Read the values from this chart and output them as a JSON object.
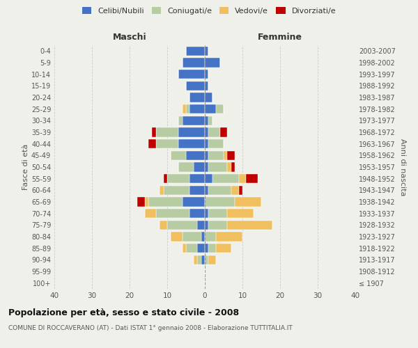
{
  "age_groups": [
    "100+",
    "95-99",
    "90-94",
    "85-89",
    "80-84",
    "75-79",
    "70-74",
    "65-69",
    "60-64",
    "55-59",
    "50-54",
    "45-49",
    "40-44",
    "35-39",
    "30-34",
    "25-29",
    "20-24",
    "15-19",
    "10-14",
    "5-9",
    "0-4"
  ],
  "birth_years": [
    "≤ 1907",
    "1908-1912",
    "1913-1917",
    "1918-1922",
    "1923-1927",
    "1928-1932",
    "1933-1937",
    "1938-1942",
    "1943-1947",
    "1948-1952",
    "1953-1957",
    "1958-1962",
    "1963-1967",
    "1968-1972",
    "1973-1977",
    "1978-1982",
    "1983-1987",
    "1988-1992",
    "1993-1997",
    "1998-2002",
    "2003-2007"
  ],
  "maschi": {
    "celibi": [
      0,
      0,
      1,
      2,
      1,
      2,
      4,
      6,
      4,
      4,
      3,
      5,
      7,
      7,
      6,
      4,
      4,
      5,
      7,
      6,
      5
    ],
    "coniugati": [
      0,
      0,
      1,
      3,
      5,
      8,
      9,
      9,
      7,
      6,
      4,
      4,
      6,
      6,
      1,
      1,
      0,
      0,
      0,
      0,
      0
    ],
    "vedovi": [
      0,
      0,
      1,
      1,
      3,
      2,
      3,
      1,
      1,
      0,
      0,
      0,
      0,
      0,
      0,
      1,
      0,
      0,
      0,
      0,
      0
    ],
    "divorziati": [
      0,
      0,
      0,
      0,
      0,
      0,
      0,
      2,
      0,
      1,
      0,
      0,
      2,
      1,
      0,
      0,
      0,
      0,
      0,
      0,
      0
    ]
  },
  "femmine": {
    "nubili": [
      0,
      0,
      0,
      1,
      0,
      1,
      1,
      0,
      1,
      2,
      1,
      1,
      1,
      1,
      1,
      3,
      2,
      1,
      1,
      4,
      1
    ],
    "coniugate": [
      0,
      0,
      1,
      2,
      3,
      5,
      5,
      8,
      6,
      7,
      5,
      4,
      4,
      3,
      1,
      2,
      0,
      0,
      0,
      0,
      0
    ],
    "vedove": [
      0,
      0,
      2,
      4,
      7,
      12,
      7,
      7,
      2,
      2,
      1,
      1,
      0,
      0,
      0,
      0,
      0,
      0,
      0,
      0,
      0
    ],
    "divorziate": [
      0,
      0,
      0,
      0,
      0,
      0,
      0,
      0,
      1,
      3,
      1,
      2,
      0,
      2,
      0,
      0,
      0,
      0,
      0,
      0,
      0
    ]
  },
  "colors": {
    "celibi": "#4472c4",
    "coniugati": "#b8cca4",
    "vedovi": "#f0c060",
    "divorziati": "#c00000"
  },
  "xlim": 40,
  "title": "Popolazione per età, sesso e stato civile - 2008",
  "subtitle": "COMUNE DI ROCCAVERANO (AT) - Dati ISTAT 1° gennaio 2008 - Elaborazione TUTTITALIA.IT",
  "ylabel_left": "Fasce di età",
  "ylabel_right": "Anni di nascita",
  "xlabel_left": "Maschi",
  "xlabel_right": "Femmine",
  "bg_color": "#f0f0eb",
  "grid_color": "#cccccc",
  "legend_labels": [
    "Celibi/Nubili",
    "Coniugati/e",
    "Vedovi/e",
    "Divorziati/e"
  ]
}
